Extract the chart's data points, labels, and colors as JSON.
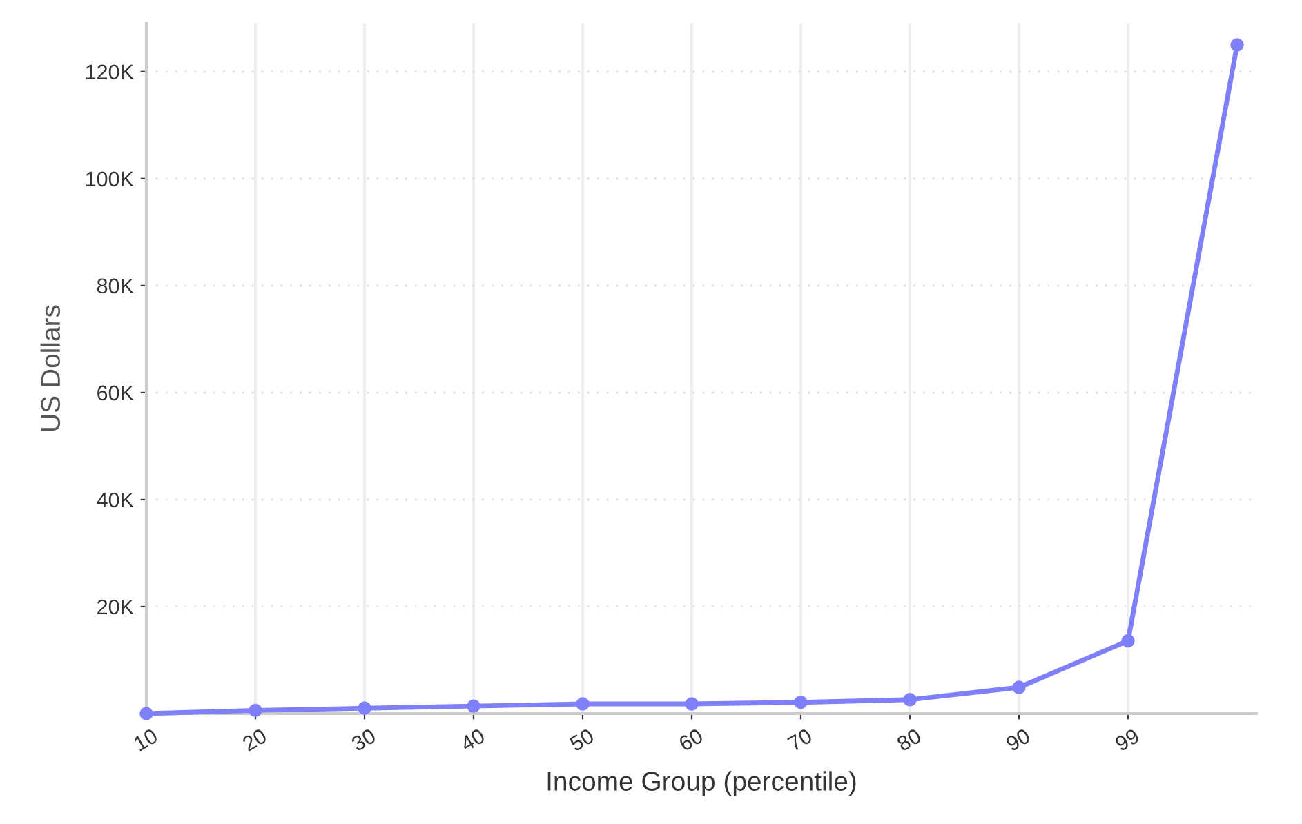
{
  "chart_data": {
    "type": "line",
    "xlabel": "Income Group (percentile)",
    "ylabel": "US Dollars",
    "categories": [
      "10",
      "20",
      "30",
      "40",
      "50",
      "60",
      "70",
      "80",
      "90",
      "99",
      null
    ],
    "series": [
      {
        "color": "#7f7ffa",
        "values": [
          0,
          600,
          1000,
          1400,
          1800,
          1800,
          2100,
          2600,
          4900,
          13600,
          125000
        ]
      }
    ],
    "ylim": [
      0,
      129000
    ],
    "yticks": [
      {
        "value": 20000,
        "label": "20K"
      },
      {
        "value": 40000,
        "label": "40K"
      },
      {
        "value": 60000,
        "label": "60K"
      },
      {
        "value": 80000,
        "label": "80K"
      },
      {
        "value": 100000,
        "label": "100K"
      },
      {
        "value": 120000,
        "label": "120K"
      }
    ],
    "grid": true,
    "marker": "circle",
    "line_style": "solid"
  }
}
